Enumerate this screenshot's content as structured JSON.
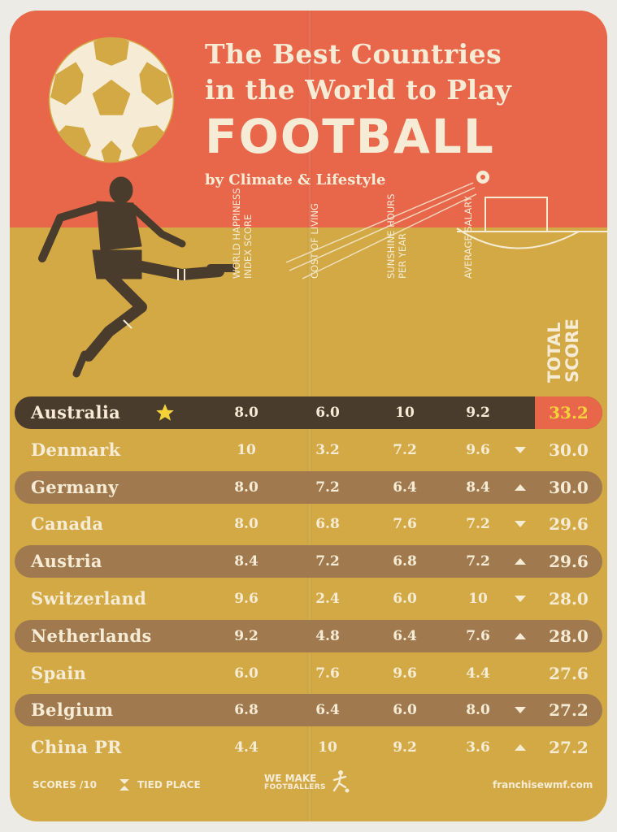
{
  "header": {
    "title_line1": "The Best Countries",
    "title_line2": "in the World to Play",
    "title_line3": "FOOTBALL",
    "subtitle": "by Climate & Lifestyle"
  },
  "colors": {
    "header": "#e8674a",
    "body": "#d2a944",
    "row_dark": "#a07a4e",
    "row_first": "#4a3c2c",
    "cream": "#f6ecd6",
    "gold_text": "#f4d23a"
  },
  "columns": {
    "c1": "World Happiness Index Score",
    "c2": "Cost of Living",
    "c3": "Sunshine Hours Per Year",
    "c4": "Average Salary",
    "total": "Total Score"
  },
  "chart_data": {
    "type": "table",
    "columns": [
      "World Happiness Index Score",
      "Cost of Living",
      "Sunshine Hours Per Year",
      "Average Salary",
      "Total Score"
    ],
    "rows": [
      {
        "country": "Australia",
        "v1": "8.0",
        "v2": "6.0",
        "v3": "10",
        "v4": "9.2",
        "total": "33.2",
        "tie": "",
        "star": true
      },
      {
        "country": "Denmark",
        "v1": "10",
        "v2": "3.2",
        "v3": "7.2",
        "v4": "9.6",
        "total": "30.0",
        "tie": "down"
      },
      {
        "country": "Germany",
        "v1": "8.0",
        "v2": "7.2",
        "v3": "6.4",
        "v4": "8.4",
        "total": "30.0",
        "tie": "up"
      },
      {
        "country": "Canada",
        "v1": "8.0",
        "v2": "6.8",
        "v3": "7.6",
        "v4": "7.2",
        "total": "29.6",
        "tie": "down"
      },
      {
        "country": "Austria",
        "v1": "8.4",
        "v2": "7.2",
        "v3": "6.8",
        "v4": "7.2",
        "total": "29.6",
        "tie": "up"
      },
      {
        "country": "Switzerland",
        "v1": "9.6",
        "v2": "2.4",
        "v3": "6.0",
        "v4": "10",
        "total": "28.0",
        "tie": "down"
      },
      {
        "country": "Netherlands",
        "v1": "9.2",
        "v2": "4.8",
        "v3": "6.4",
        "v4": "7.6",
        "total": "28.0",
        "tie": "up"
      },
      {
        "country": "Spain",
        "v1": "6.0",
        "v2": "7.6",
        "v3": "9.6",
        "v4": "4.4",
        "total": "27.6",
        "tie": ""
      },
      {
        "country": "Belgium",
        "v1": "6.8",
        "v2": "6.4",
        "v3": "6.0",
        "v4": "8.0",
        "total": "27.2",
        "tie": "down"
      },
      {
        "country": "China PR",
        "v1": "4.4",
        "v2": "10",
        "v3": "9.2",
        "v4": "3.6",
        "total": "27.2",
        "tie": "up"
      }
    ]
  },
  "footer": {
    "scores_note": "SCORES /10",
    "tied_note": "TIED PLACE",
    "brand_line1": "WE MAKE",
    "brand_line2": "FOOTBALLERS",
    "website": "franchisewmf.com"
  },
  "icons": {
    "ball": "football-icon",
    "player": "footballer-kicking-icon",
    "star": "star-icon",
    "tie_up": "triangle-up-icon",
    "tie_down": "triangle-down-icon",
    "tied": "hourglass-icon"
  }
}
